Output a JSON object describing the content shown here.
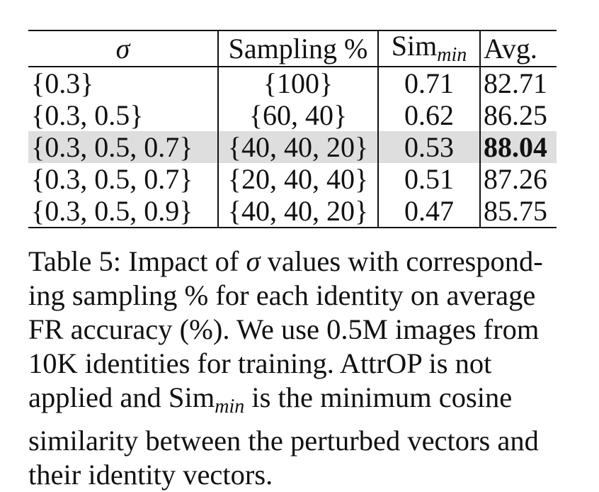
{
  "table": {
    "headers": {
      "sigma": "σ",
      "sampling": "Sampling %",
      "sim_base": "Sim",
      "sim_sub": "min",
      "avg": "Avg."
    },
    "rows": [
      {
        "sigma": "{0.3}",
        "sampling": "{100}",
        "sim": "0.71",
        "avg": "82.71",
        "highlight": false
      },
      {
        "sigma": "{0.3, 0.5}",
        "sampling": "{60, 40}",
        "sim": "0.62",
        "avg": "86.25",
        "highlight": false
      },
      {
        "sigma": "{0.3, 0.5, 0.7}",
        "sampling": "{40, 40, 20}",
        "sim": "0.53",
        "avg": "88.04",
        "highlight": true
      },
      {
        "sigma": "{0.3, 0.5, 0.7}",
        "sampling": "{20, 40, 40}",
        "sim": "0.51",
        "avg": "87.26",
        "highlight": false
      },
      {
        "sigma": "{0.3, 0.5, 0.9}",
        "sampling": "{40, 40, 20}",
        "sim": "0.47",
        "avg": "85.75",
        "highlight": false
      }
    ]
  },
  "caption": {
    "line1_a": "Table 5: Impact of ",
    "line1_sigma": "σ",
    "line1_b": " values with correspond-",
    "line2": "ing sampling % for each identity on average",
    "line3": "FR accuracy (%). We use 0.5M images from",
    "line4": "10K identities for training.  AttrOP is not",
    "line5_a": "applied and Sim",
    "line5_sub": "min",
    "line5_b": " is the minimum cosine",
    "line6": "similarity between the perturbed vectors and",
    "line7": "their identity vectors."
  },
  "colors": {
    "highlight_row": "#dedede",
    "text": "#111111"
  }
}
